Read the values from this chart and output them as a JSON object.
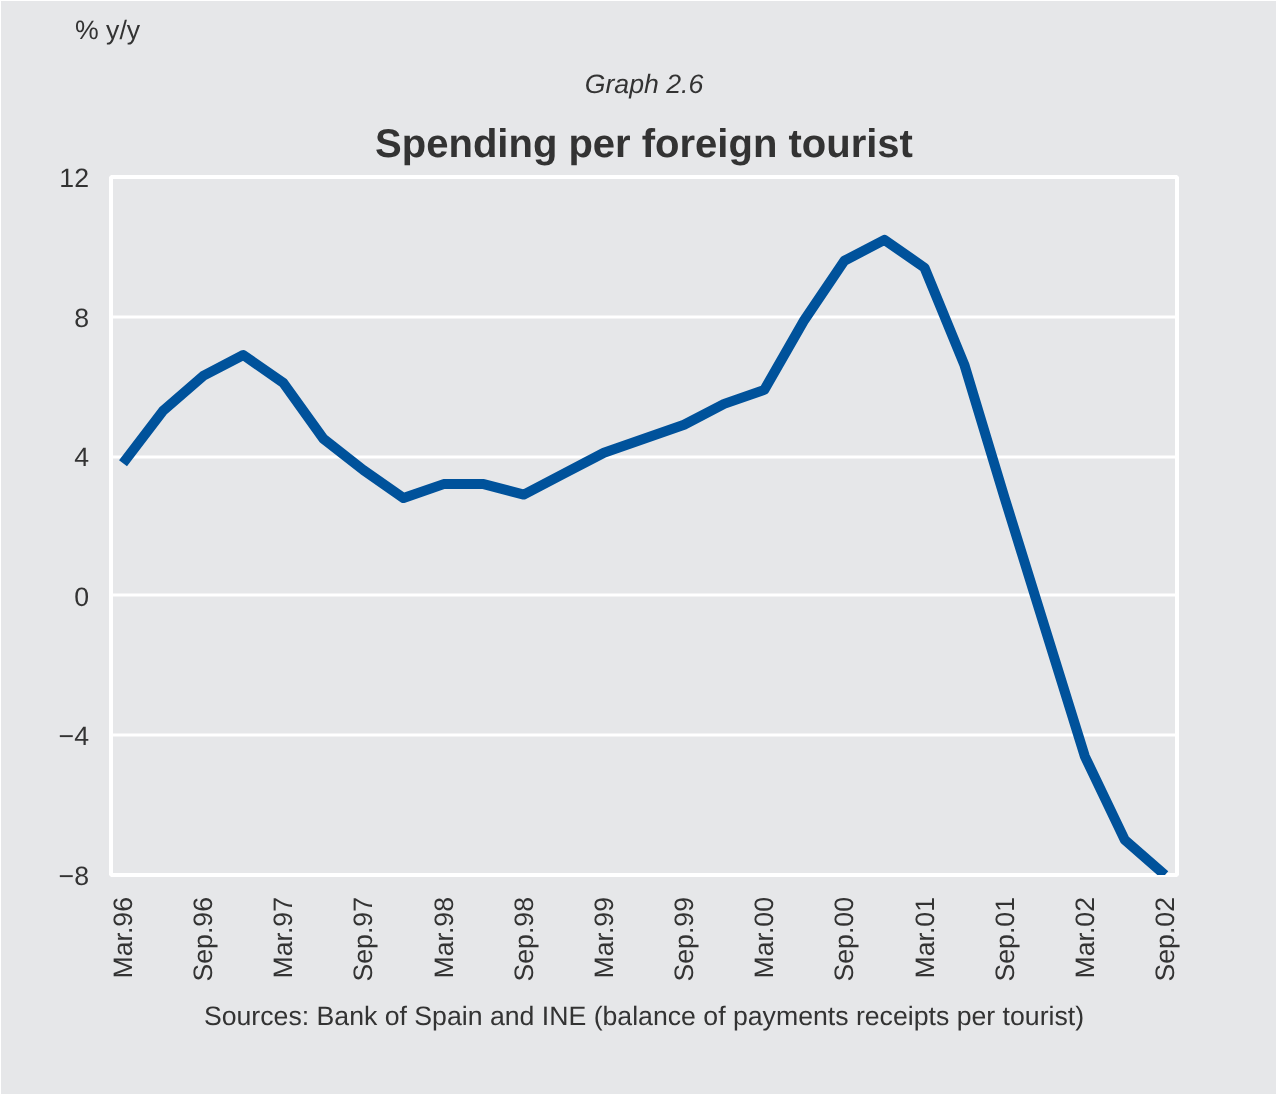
{
  "chart_data": {
    "type": "line",
    "title": "Spending per foreign tourist",
    "subtitle": "Graph 2.6",
    "ylabel": "% y/y",
    "categories": [
      "Mar.96",
      null,
      "Sep.96",
      null,
      "Mar.97",
      null,
      "Sep.97",
      null,
      "Mar.98",
      null,
      "Sep.98",
      null,
      "Mar.99",
      null,
      "Sep.99",
      null,
      "Mar.00",
      null,
      "Sep.00",
      null,
      "Mar.01",
      null,
      "Sep.01",
      null,
      "Mar.02",
      null,
      "Sep.02"
    ],
    "series": [
      {
        "color": "#00529b",
        "values": [
          3.8,
          5.3,
          6.3,
          6.9,
          6.1,
          4.5,
          3.6,
          2.8,
          3.2,
          3.2,
          2.9,
          3.5,
          4.1,
          4.5,
          4.9,
          5.5,
          5.9,
          7.9,
          9.6,
          10.2,
          9.4,
          6.6,
          2.8,
          -0.9,
          -4.6,
          -7.0,
          -8.0
        ]
      }
    ],
    "ylim": [
      -8,
      12
    ],
    "yticks": [
      -8,
      -4,
      0,
      4,
      8,
      12
    ],
    "grid": "y",
    "annotations": [
      "Sources: Bank of Spain and INE (balance of payments receipts per tourist)"
    ]
  }
}
